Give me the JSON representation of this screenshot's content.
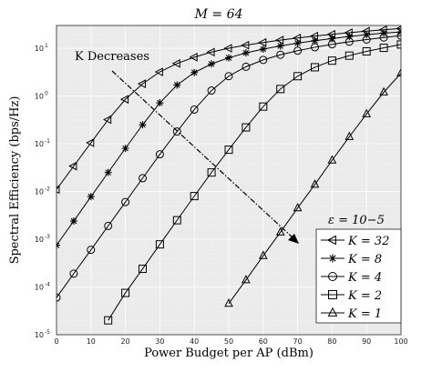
{
  "chart_data": {
    "type": "line",
    "title": "M  =  64",
    "xlabel": "Power Budget per AP (dBm)",
    "ylabel": "Spectral Efficiency (bps/Hz)",
    "xlim": [
      0,
      100
    ],
    "ylim": [
      1e-05,
      30
    ],
    "yscale": "log",
    "grid": true,
    "x_ticks": [
      "0",
      "10",
      "20",
      "30",
      "40",
      "50",
      "60",
      "70",
      "80",
      "90",
      "100"
    ],
    "y_ticks": [
      {
        "base": "10",
        "exp": "-5",
        "value": 1e-05
      },
      {
        "base": "10",
        "exp": "-4",
        "value": 0.0001
      },
      {
        "base": "10",
        "exp": "-3",
        "value": 0.001
      },
      {
        "base": "10",
        "exp": "-2",
        "value": 0.01
      },
      {
        "base": "10",
        "exp": "-1",
        "value": 0.1
      },
      {
        "base": "10",
        "exp": "0",
        "value": 1
      },
      {
        "base": "10",
        "exp": "1",
        "value": 10
      }
    ],
    "annotation": "K Decreases",
    "epsilon_label": "ε = 10−5",
    "legend_position": "bottom-right",
    "series": [
      {
        "name": "K = 32",
        "marker": "triangle-left",
        "x": [
          0,
          5,
          10,
          15,
          20,
          25,
          30,
          35,
          40,
          45,
          50,
          55,
          60,
          65,
          70,
          75,
          80,
          85,
          90,
          95,
          100
        ],
        "y": [
          0.011,
          0.034,
          0.105,
          0.32,
          0.85,
          1.8,
          3.2,
          4.8,
          6.5,
          8.3,
          10,
          11.6,
          13.2,
          14.8,
          16.4,
          18,
          19.6,
          21.2,
          22.8,
          24.4,
          26
        ]
      },
      {
        "name": "K = 8",
        "marker": "asterisk",
        "x": [
          0,
          5,
          10,
          15,
          20,
          25,
          30,
          35,
          40,
          45,
          50,
          55,
          60,
          65,
          70,
          75,
          80,
          85,
          90,
          95,
          100
        ],
        "y": [
          0.00075,
          0.0024,
          0.0078,
          0.025,
          0.08,
          0.25,
          0.72,
          1.7,
          3.1,
          4.7,
          6.3,
          8,
          9.6,
          11.2,
          12.8,
          14.4,
          16,
          17.6,
          19.2,
          20.8,
          22
        ]
      },
      {
        "name": "K = 4",
        "marker": "circle",
        "x": [
          0,
          5,
          10,
          15,
          20,
          25,
          30,
          35,
          40,
          45,
          50,
          55,
          60,
          65,
          70,
          75,
          80,
          85,
          90,
          95,
          100
        ],
        "y": [
          6e-05,
          0.00019,
          0.0006,
          0.0019,
          0.006,
          0.019,
          0.06,
          0.18,
          0.52,
          1.3,
          2.6,
          4.1,
          5.7,
          7.3,
          8.9,
          10.5,
          12.1,
          13.7,
          15.2,
          16.8,
          18.4
        ]
      },
      {
        "name": "K = 2",
        "marker": "square",
        "x": [
          15,
          20,
          25,
          30,
          35,
          40,
          45,
          50,
          55,
          60,
          65,
          70,
          75,
          80,
          85,
          90,
          95,
          100
        ],
        "y": [
          2e-05,
          7.5e-05,
          0.00024,
          0.00078,
          0.0025,
          0.008,
          0.025,
          0.075,
          0.22,
          0.6,
          1.4,
          2.6,
          4,
          5.5,
          7,
          8.6,
          10.2,
          12
        ]
      },
      {
        "name": "K = 1",
        "marker": "triangle-up",
        "x": [
          50,
          55,
          60,
          65,
          70,
          75,
          80,
          85,
          90,
          95,
          100
        ],
        "y": [
          4.5e-05,
          0.00014,
          0.00045,
          0.0014,
          0.0045,
          0.014,
          0.045,
          0.14,
          0.42,
          1.2,
          3
        ]
      }
    ]
  }
}
